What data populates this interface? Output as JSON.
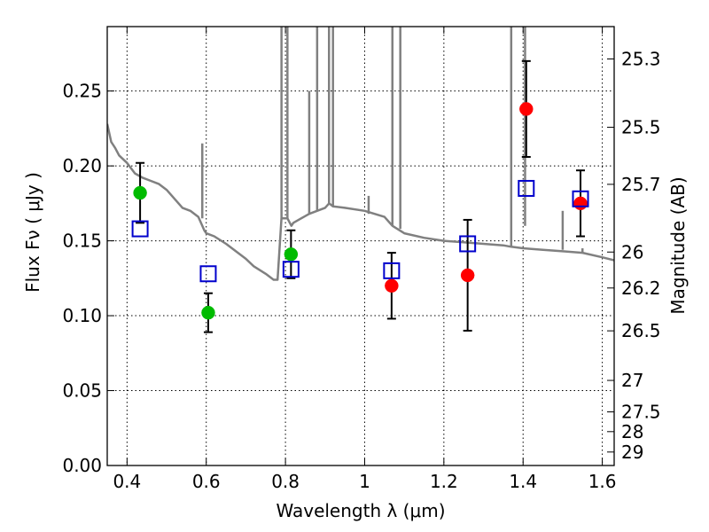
{
  "chart_data": {
    "type": "scatter",
    "title": "",
    "xlabel": "Wavelength  λ (μm)",
    "ylabel": "Flux  Fν  ( μJy )",
    "y2label": "Magnitude (AB)",
    "xlim": [
      0.35,
      1.63
    ],
    "ylim": [
      0.0,
      0.293
    ],
    "grid": true,
    "x_ticks": [
      0.4,
      0.6,
      0.8,
      1.0,
      1.2,
      1.4,
      1.6
    ],
    "x_tick_labels": [
      "0.4",
      "0.6",
      "0.8",
      "1",
      "1.2",
      "1.4",
      "1.6"
    ],
    "y_ticks": [
      0.0,
      0.05,
      0.1,
      0.15,
      0.2,
      0.25
    ],
    "y_tick_labels": [
      "0.00",
      "0.05",
      "0.10",
      "0.15",
      "0.20",
      "0.25"
    ],
    "y2_ticks": [
      {
        "label": "25.3",
        "flux": 0.2714
      },
      {
        "label": "25.5",
        "flux": 0.2258
      },
      {
        "label": "25.7",
        "flux": 0.1877
      },
      {
        "label": "26",
        "flux": 0.1425
      },
      {
        "label": "26.2",
        "flux": 0.1185
      },
      {
        "label": "26.5",
        "flux": 0.0899
      },
      {
        "label": "27",
        "flux": 0.0568
      },
      {
        "label": "27.5",
        "flux": 0.0358
      },
      {
        "label": "28",
        "flux": 0.0226
      },
      {
        "label": "29",
        "flux": 0.009
      }
    ],
    "colors": {
      "model": "#808080",
      "green": "#00bb00",
      "red": "#ff0000",
      "model_band": "#0000cc",
      "errorbar": "#000000"
    },
    "series": [
      {
        "style": "line",
        "x": [
          0.35,
          0.36,
          0.37,
          0.38,
          0.4,
          0.42,
          0.44,
          0.46,
          0.48,
          0.5,
          0.52,
          0.54,
          0.56,
          0.58,
          0.59,
          0.595,
          0.6,
          0.62,
          0.65,
          0.7,
          0.72,
          0.75,
          0.77,
          0.78,
          0.79,
          0.8,
          0.805,
          0.815,
          0.82,
          0.84,
          0.86,
          0.88,
          0.9,
          0.91,
          0.915,
          0.92,
          0.95,
          1.0,
          1.05,
          1.07,
          1.1,
          1.15,
          1.2,
          1.25,
          1.3,
          1.35,
          1.37,
          1.4,
          1.45,
          1.5,
          1.55,
          1.6,
          1.63
        ],
        "y": [
          0.228,
          0.216,
          0.212,
          0.207,
          0.202,
          0.195,
          0.192,
          0.19,
          0.188,
          0.184,
          0.178,
          0.172,
          0.17,
          0.166,
          0.16,
          0.157,
          0.155,
          0.153,
          0.148,
          0.138,
          0.133,
          0.128,
          0.124,
          0.124,
          0.165,
          0.165,
          0.165,
          0.16,
          0.162,
          0.165,
          0.168,
          0.17,
          0.172,
          0.175,
          0.174,
          0.173,
          0.172,
          0.17,
          0.166,
          0.16,
          0.155,
          0.152,
          0.15,
          0.149,
          0.148,
          0.147,
          0.146,
          0.145,
          0.144,
          0.143,
          0.142,
          0.139,
          0.137
        ]
      },
      {
        "style": "points",
        "marker": "circle",
        "color_key": "green",
        "x": [
          0.433,
          0.605,
          0.814
        ],
        "y": [
          0.182,
          0.102,
          0.141
        ],
        "yerr": [
          0.02,
          0.013,
          0.016
        ]
      },
      {
        "style": "points",
        "marker": "circle",
        "color_key": "red",
        "x": [
          1.068,
          1.26,
          1.408,
          1.545
        ],
        "y": [
          0.12,
          0.127,
          0.238,
          0.175
        ],
        "yerr": [
          0.022,
          0.037,
          0.032,
          0.022
        ]
      },
      {
        "style": "points",
        "marker": "open-square",
        "color_key": "model_band",
        "x": [
          0.433,
          0.605,
          0.814,
          1.068,
          1.26,
          1.408,
          1.545
        ],
        "y": [
          0.158,
          0.128,
          0.131,
          0.13,
          0.148,
          0.185,
          0.178
        ]
      }
    ]
  }
}
